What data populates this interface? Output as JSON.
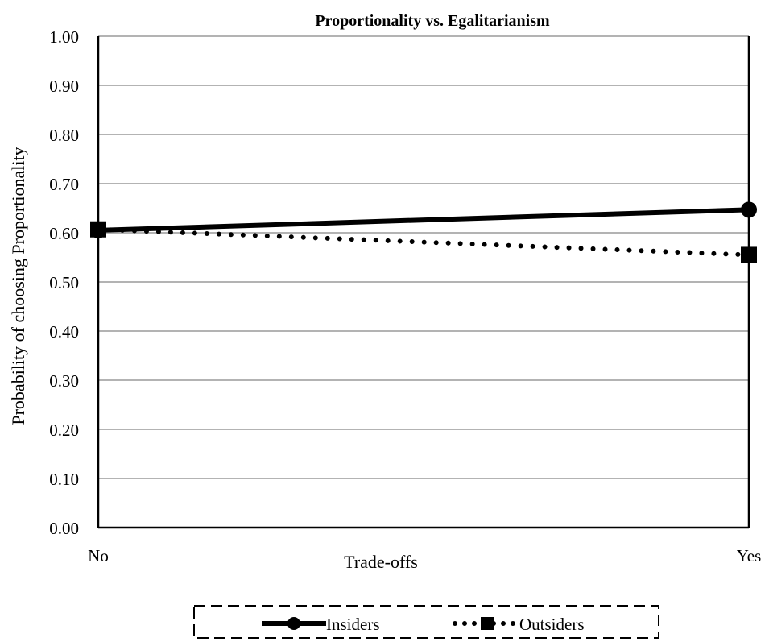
{
  "chart_data": {
    "type": "line",
    "title": "Proportionality vs. Egalitarianism",
    "xlabel": "Trade-offs",
    "ylabel": "Probability of choosing Proportionality",
    "categories": [
      "No",
      "Yes"
    ],
    "ylim": [
      0,
      1
    ],
    "yticks": [
      "0.00",
      "0.10",
      "0.20",
      "0.30",
      "0.40",
      "0.50",
      "0.60",
      "0.70",
      "0.80",
      "0.90",
      "1.00"
    ],
    "grid": true,
    "legend_position": "bottom",
    "series": [
      {
        "name": "Insiders",
        "values": [
          0.605,
          0.647
        ],
        "style": "solid",
        "marker": "circle",
        "color": "#000000"
      },
      {
        "name": "Outsiders",
        "values": [
          0.607,
          0.555
        ],
        "style": "dotted",
        "marker": "square",
        "color": "#000000"
      }
    ]
  }
}
